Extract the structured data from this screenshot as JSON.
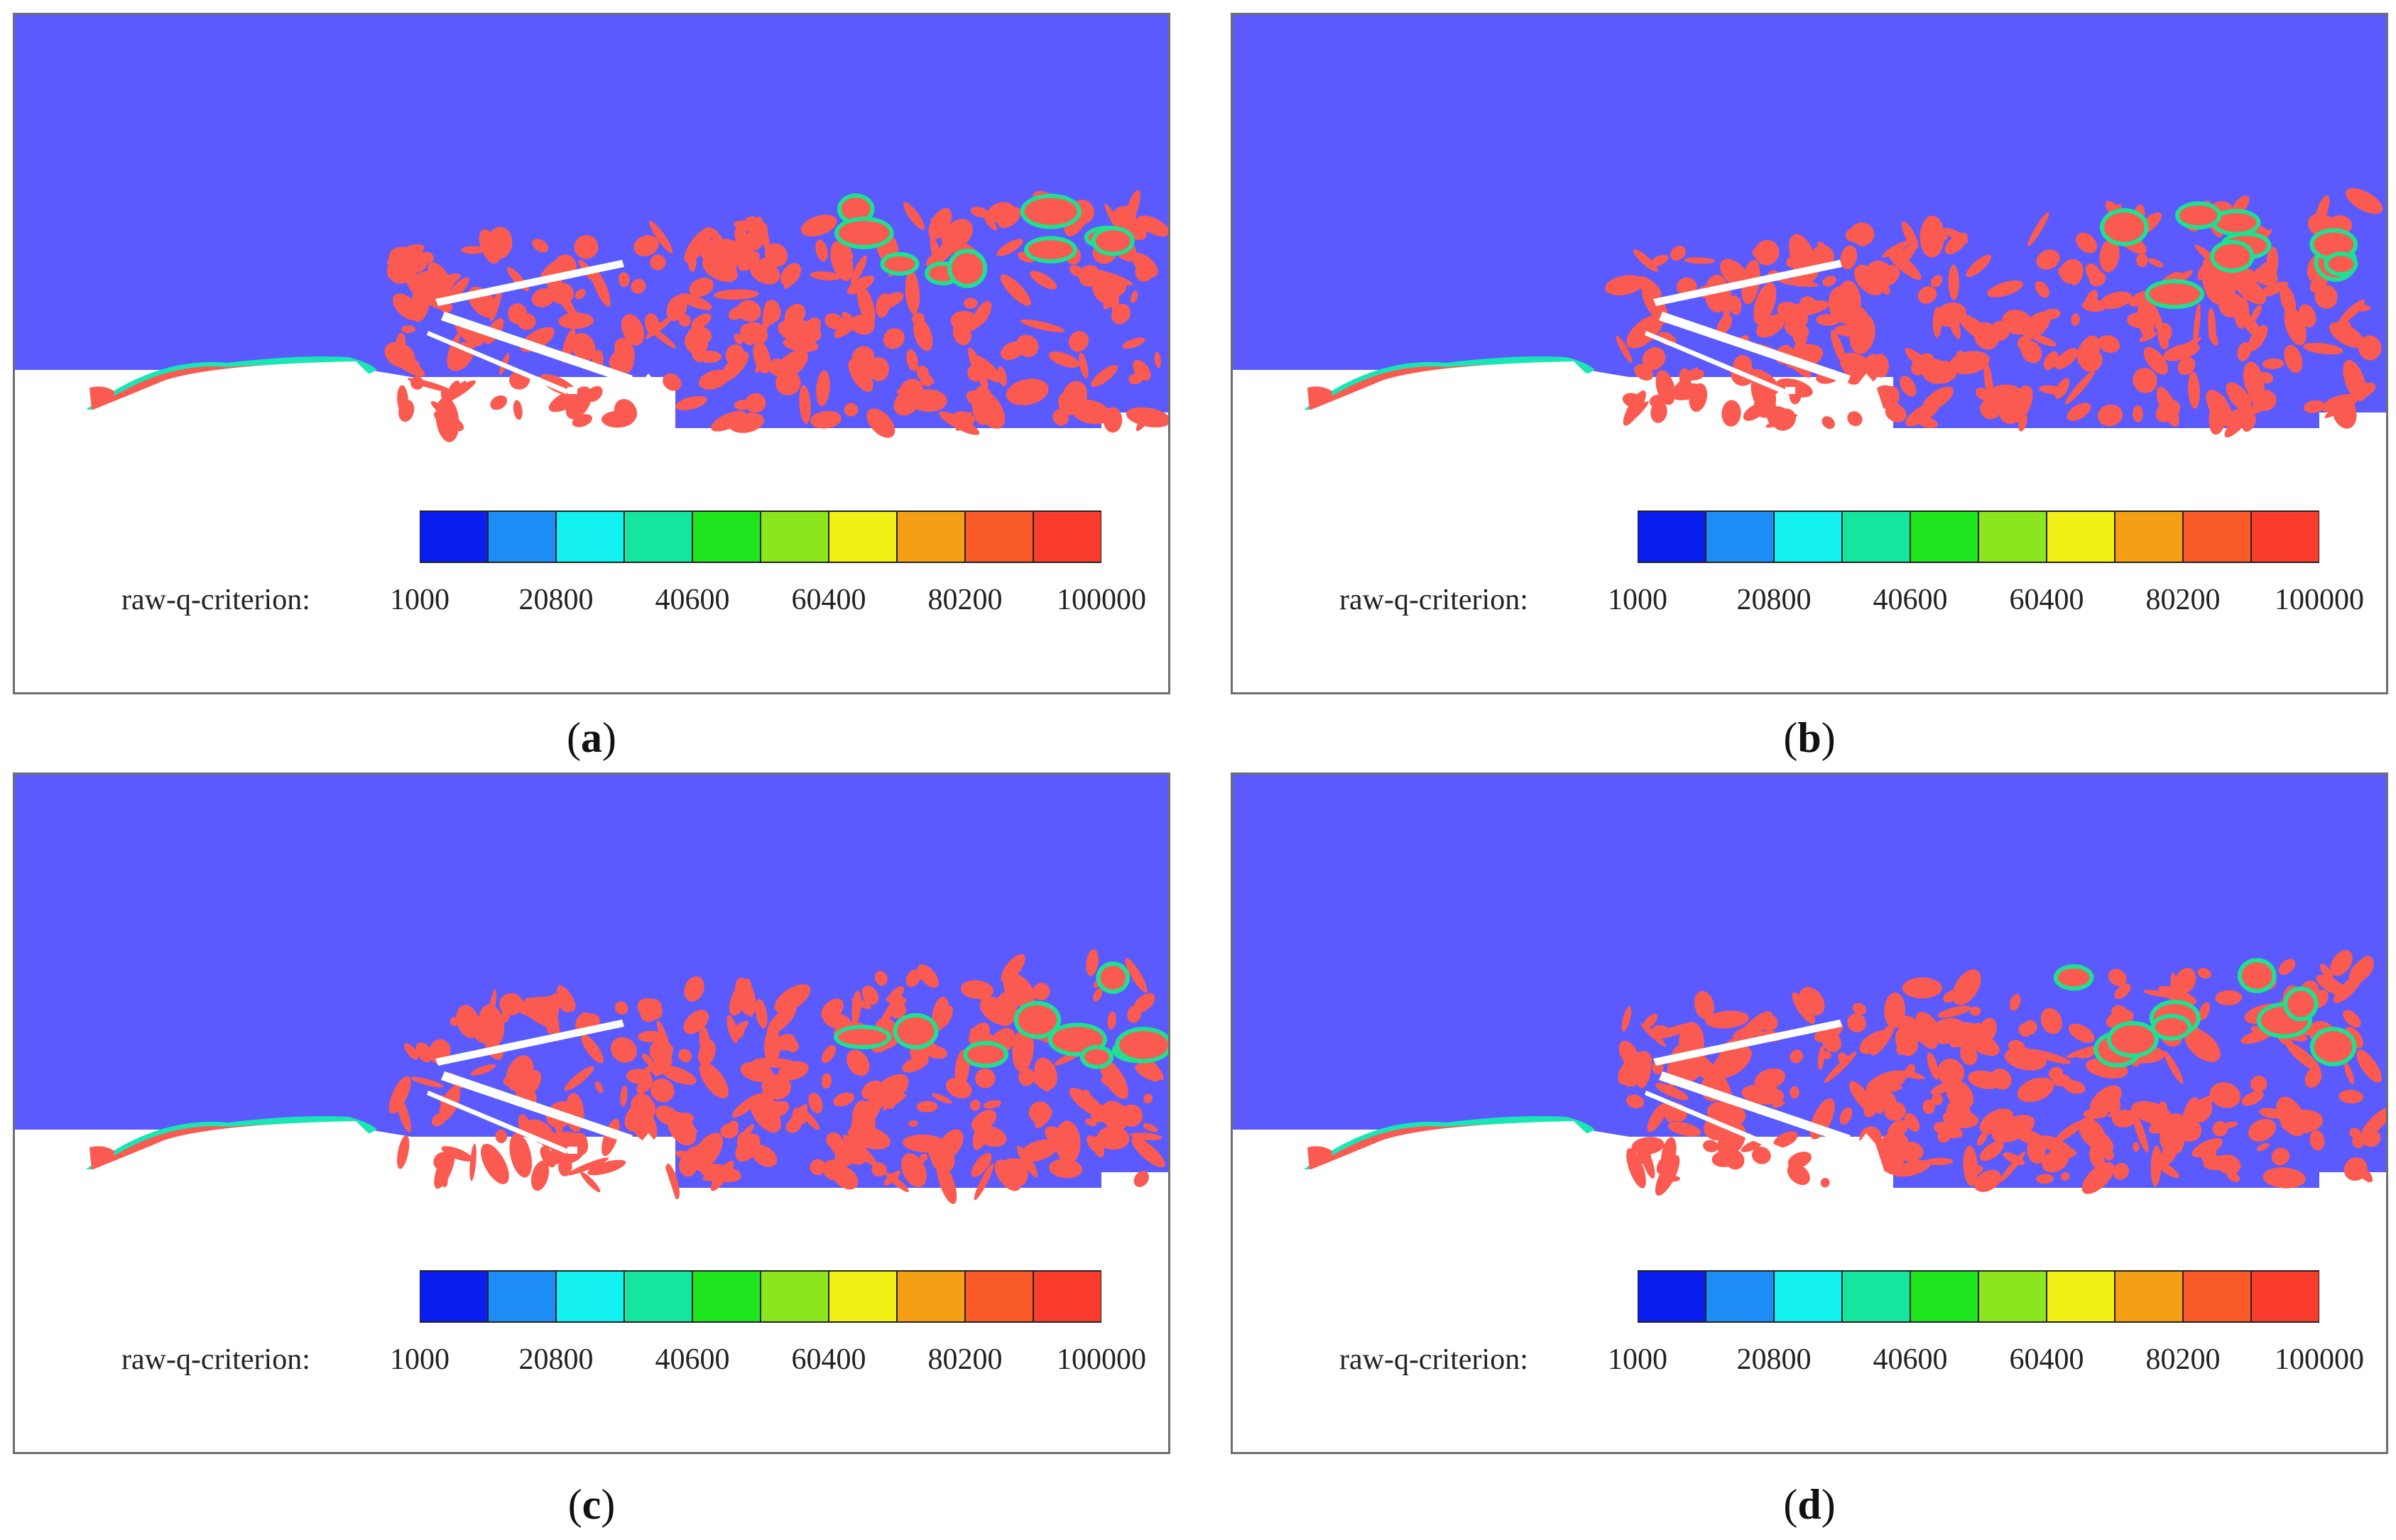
{
  "colorbar": {
    "title": "raw-q-criterion:",
    "ticks": [
      "1000",
      "20800",
      "40600",
      "60400",
      "80200",
      "100000"
    ],
    "colors": [
      "#0a1ef0",
      "#1e8cf5",
      "#12f0f0",
      "#14e6a0",
      "#1ee61e",
      "#8ce61e",
      "#f0f014",
      "#f5a014",
      "#fa5a28",
      "#fa3c2d"
    ]
  },
  "colors": {
    "background_flow": "#5a5aff",
    "vortex": "#fa5a50",
    "wall": "#ffffff"
  },
  "panels": [
    {
      "id": "a",
      "caption_open": "(",
      "caption_letter": "a",
      "caption_close": ")"
    },
    {
      "id": "b",
      "caption_open": "(",
      "caption_letter": "b",
      "caption_close": ")"
    },
    {
      "id": "c",
      "caption_open": "(",
      "caption_letter": "c",
      "caption_close": ")"
    },
    {
      "id": "d",
      "caption_open": "(",
      "caption_letter": "d",
      "caption_close": ")"
    }
  ]
}
